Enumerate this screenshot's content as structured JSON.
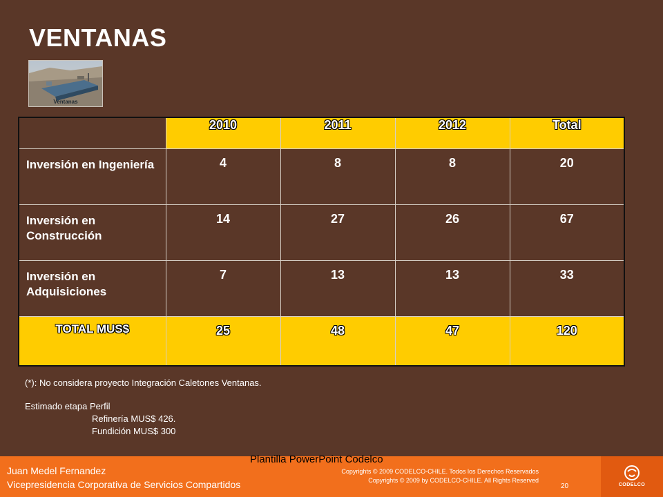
{
  "slide": {
    "title": "VENTANAS",
    "thumbnail_caption": "Ventanas"
  },
  "table": {
    "headers": [
      "",
      "2010",
      "2011",
      "2012",
      "Total"
    ],
    "rows": [
      {
        "label": "Inversión en Ingeniería",
        "values": [
          "4",
          "8",
          "8",
          "20"
        ]
      },
      {
        "label": "Inversión en Construcción",
        "values": [
          "14",
          "27",
          "26",
          "67"
        ]
      },
      {
        "label": "Inversión en Adquisiciones",
        "values": [
          "7",
          "13",
          "13",
          "33"
        ]
      }
    ],
    "total": {
      "label": "TOTAL MUS$",
      "values": [
        "25",
        "48",
        "47",
        "120"
      ]
    }
  },
  "notes": {
    "footnote": "(*): No considera proyecto Integración Caletones Ventanas.",
    "estimate_title": "Estimado etapa Perfil",
    "line1": "Refinería MUS$ 426.",
    "line2": "Fundición MUS$ 300"
  },
  "footer": {
    "author": "Juan Medel Fernandez",
    "department": "Vicepresidencia Corporativa de Servicios Compartidos",
    "template": "Plantilla PowerPoint Codelco",
    "copyright1": "Copyrights © 2009 CODELCO-CHILE. Todos los Derechos Reservados",
    "copyright2": "Copyrights © 2009 by CODELCO-CHILE. All Rights Reserved",
    "page": "20",
    "logo_text": "CODELCO"
  },
  "colors": {
    "background": "#5a3728",
    "accent_yellow": "#ffcc00",
    "footer_orange": "#f26f1c"
  }
}
